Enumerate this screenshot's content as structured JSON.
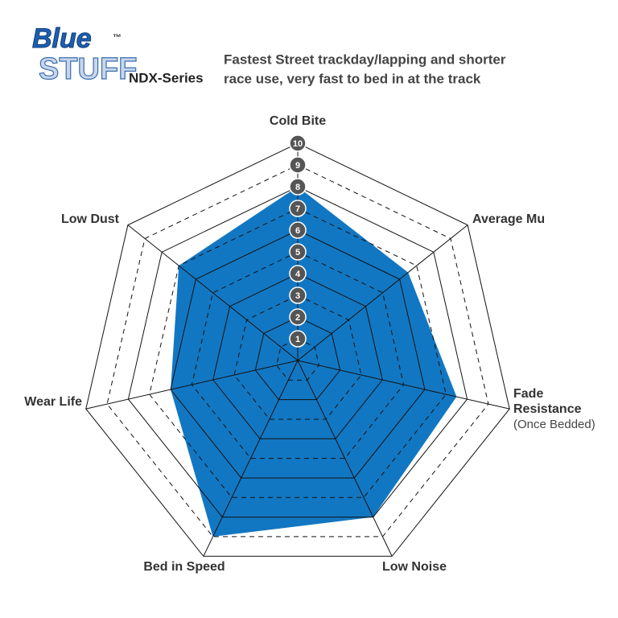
{
  "brand": {
    "name_top": "Blue",
    "name_bottom": "STUFF",
    "trademark": "™",
    "series": "NDX-Series"
  },
  "subtitle_lines": [
    "Fastest Street trackday/lapping and shorter",
    "race use, very fast to bed in at the track"
  ],
  "chart_data": {
    "type": "radar",
    "categories": [
      "Cold Bite",
      "Average Mu",
      "Fade Resistance",
      "Low Noise",
      "Bed in Speed",
      "Wear Life",
      "Low Dust"
    ],
    "category_notes": [
      null,
      null,
      "(Once Bedded)",
      null,
      null,
      null,
      null
    ],
    "values": [
      8,
      6.5,
      7.5,
      8,
      9,
      6,
      7
    ],
    "color": "#1277c2",
    "rlim": [
      0,
      10
    ],
    "rticks": [
      1,
      2,
      3,
      4,
      5,
      6,
      7,
      8,
      9,
      10
    ]
  }
}
